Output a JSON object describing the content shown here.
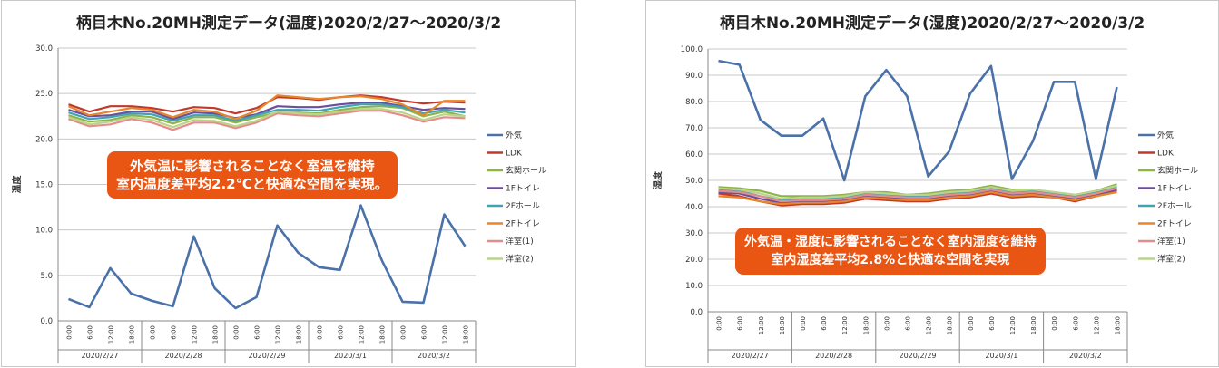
{
  "chart_data": [
    {
      "type": "line",
      "title": "柄目木No.20MH測定データ(温度)2020/2/27～2020/3/2",
      "ylabel": "温度",
      "ylim": [
        0,
        30
      ],
      "yticks": [
        "0.0",
        "5.0",
        "10.0",
        "15.0",
        "20.0",
        "25.0",
        "30.0"
      ],
      "x_tick_labels": [
        "0:00",
        "6:00",
        "12:00",
        "18:00",
        "0:00",
        "6:00",
        "12:00",
        "18:00",
        "0:00",
        "6:00",
        "12:00",
        "18:00",
        "0:00",
        "6:00",
        "12:00",
        "18:00",
        "0:00",
        "6:00",
        "12:00",
        "18:00"
      ],
      "date_labels": [
        "2020/2/27",
        "2020/2/28",
        "2020/2/29",
        "2020/3/1",
        "2020/3/2"
      ],
      "grid": true,
      "legend_position": "right",
      "annotation": [
        "外気温に影響されることなく室温を維持",
        "室内温度差平均2.2℃と快適な空間を実現。"
      ],
      "series": [
        {
          "name": "外気",
          "color": "#4a71a8",
          "values": [
            2.4,
            1.5,
            5.8,
            3.0,
            2.2,
            1.6,
            9.3,
            3.6,
            1.4,
            2.6,
            10.5,
            7.5,
            5.9,
            5.6,
            12.7,
            6.7,
            2.1,
            2.0,
            11.7,
            8.2
          ]
        },
        {
          "name": "LDK",
          "color": "#c0392b",
          "values": [
            23.8,
            23.0,
            23.6,
            23.6,
            23.4,
            23.0,
            23.5,
            23.4,
            22.8,
            23.4,
            24.6,
            24.5,
            24.3,
            24.6,
            24.8,
            24.6,
            24.2,
            23.9,
            24.1,
            24.0
          ]
        },
        {
          "name": "玄関ホール",
          "color": "#8cb449",
          "values": [
            22.6,
            21.9,
            22.1,
            22.6,
            22.4,
            21.7,
            22.4,
            22.4,
            21.8,
            22.4,
            22.9,
            22.9,
            22.8,
            23.2,
            23.5,
            23.6,
            23.4,
            22.5,
            23.0,
            22.5
          ]
        },
        {
          "name": "1Fトイレ",
          "color": "#6a4f9c",
          "values": [
            23.2,
            22.5,
            22.6,
            23.0,
            23.0,
            22.2,
            22.9,
            22.8,
            22.3,
            22.7,
            23.6,
            23.5,
            23.5,
            23.8,
            24.0,
            24.0,
            23.6,
            23.2,
            23.4,
            23.3
          ]
        },
        {
          "name": "2Fホール",
          "color": "#3ea3b4",
          "values": [
            22.9,
            22.2,
            22.4,
            22.8,
            22.7,
            22.0,
            22.6,
            22.6,
            22.0,
            22.6,
            23.2,
            23.2,
            23.1,
            23.5,
            23.8,
            23.8,
            23.5,
            22.8,
            23.2,
            22.9
          ]
        },
        {
          "name": "2Fトイレ",
          "color": "#e8862a",
          "values": [
            23.6,
            22.6,
            23.0,
            23.4,
            23.2,
            22.4,
            23.2,
            23.0,
            22.2,
            23.1,
            24.8,
            24.6,
            24.4,
            24.6,
            24.7,
            24.4,
            23.8,
            22.6,
            24.2,
            24.2
          ]
        },
        {
          "name": "洋室(1)",
          "color": "#e58b8b",
          "values": [
            22.2,
            21.4,
            21.6,
            22.2,
            21.8,
            21.0,
            21.8,
            21.8,
            21.2,
            21.8,
            22.8,
            22.6,
            22.5,
            22.8,
            23.1,
            23.1,
            22.6,
            21.9,
            22.4,
            22.3
          ]
        },
        {
          "name": "洋室(2)",
          "color": "#bcd48a",
          "values": [
            22.4,
            21.6,
            21.9,
            22.4,
            22.1,
            21.3,
            22.1,
            22.0,
            21.4,
            22.0,
            23.0,
            22.8,
            22.7,
            23.0,
            23.3,
            23.3,
            22.9,
            22.1,
            22.7,
            22.5
          ]
        }
      ]
    },
    {
      "type": "line",
      "title": "柄目木No.20MH測定データ(湿度)2020/2/27～2020/3/2",
      "ylabel": "湿度",
      "ylim": [
        0,
        100
      ],
      "yticks": [
        "0.0",
        "10.0",
        "20.0",
        "30.0",
        "40.0",
        "50.0",
        "60.0",
        "70.0",
        "80.0",
        "90.0",
        "100.0"
      ],
      "x_tick_labels": [
        "0:00",
        "6:00",
        "12:00",
        "18:00",
        "0:00",
        "6:00",
        "12:00",
        "18:00",
        "0:00",
        "6:00",
        "12:00",
        "18:00",
        "0:00",
        "6:00",
        "12:00",
        "18:00",
        "0:00",
        "6:00",
        "12:00",
        "18:00"
      ],
      "date_labels": [
        "2020/2/27",
        "2020/2/28",
        "2020/2/29",
        "2020/3/1",
        "2020/3/2"
      ],
      "grid": true,
      "legend_position": "right",
      "annotation": [
        "外気温・湿度に影響されることなく室内湿度を維持",
        "室内湿度差平均2.8%と快適な空間を実現"
      ],
      "series": [
        {
          "name": "外気",
          "color": "#4a71a8",
          "values": [
            95.5,
            94.0,
            73.0,
            67.0,
            67.0,
            73.5,
            50.0,
            82.0,
            92.0,
            82.0,
            51.5,
            61.0,
            83.0,
            93.5,
            50.5,
            65.0,
            87.5,
            87.5,
            50.5,
            85.5
          ]
        },
        {
          "name": "LDK",
          "color": "#c0392b",
          "values": [
            45.0,
            44.0,
            42.0,
            40.5,
            41.0,
            41.0,
            41.5,
            43.0,
            42.5,
            42.0,
            42.0,
            43.0,
            43.5,
            45.0,
            43.5,
            44.0,
            43.5,
            42.0,
            44.0,
            46.0
          ]
        },
        {
          "name": "玄関ホール",
          "color": "#8cb449",
          "values": [
            47.5,
            47.0,
            46.0,
            44.0,
            44.0,
            44.0,
            44.5,
            45.5,
            45.5,
            44.5,
            45.0,
            46.0,
            46.5,
            48.0,
            46.5,
            46.5,
            45.5,
            44.5,
            46.0,
            48.5
          ]
        },
        {
          "name": "1Fトイレ",
          "color": "#6a4f9c",
          "values": [
            45.5,
            45.0,
            43.0,
            41.5,
            42.0,
            42.0,
            42.5,
            44.0,
            43.5,
            43.0,
            43.0,
            44.0,
            44.5,
            46.0,
            44.5,
            45.0,
            44.0,
            43.0,
            44.5,
            46.5
          ]
        },
        {
          "name": "2Fホール",
          "color": "#3ea3b4",
          "values": [
            46.5,
            46.0,
            44.0,
            42.5,
            43.0,
            43.0,
            43.5,
            45.0,
            44.5,
            44.0,
            44.0,
            45.0,
            45.5,
            47.0,
            45.5,
            46.0,
            45.0,
            44.0,
            45.5,
            47.5
          ]
        },
        {
          "name": "2Fトイレ",
          "color": "#e8862a",
          "values": [
            44.0,
            43.5,
            42.0,
            41.0,
            41.5,
            41.5,
            42.0,
            43.5,
            43.0,
            42.5,
            42.5,
            43.5,
            44.0,
            45.5,
            44.0,
            44.5,
            43.5,
            42.5,
            44.0,
            45.5
          ]
        },
        {
          "name": "洋室(1)",
          "color": "#e58b8b",
          "values": [
            46.0,
            45.5,
            44.0,
            42.0,
            42.5,
            42.5,
            43.0,
            44.5,
            44.0,
            43.5,
            43.5,
            44.5,
            45.0,
            46.5,
            45.0,
            45.5,
            44.5,
            43.5,
            45.0,
            47.0
          ]
        },
        {
          "name": "洋室(2)",
          "color": "#bcd48a",
          "values": [
            47.0,
            46.5,
            45.0,
            43.0,
            43.5,
            43.5,
            44.0,
            45.5,
            45.0,
            44.5,
            44.5,
            45.5,
            46.0,
            47.5,
            46.0,
            46.5,
            45.5,
            44.5,
            46.0,
            48.0
          ]
        }
      ]
    }
  ]
}
